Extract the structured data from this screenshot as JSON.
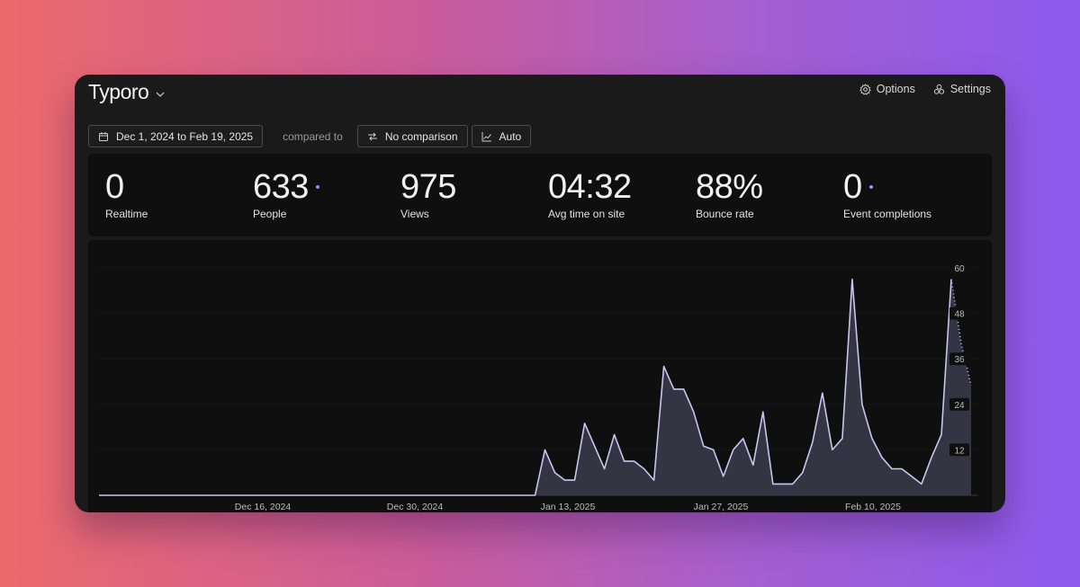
{
  "header": {
    "site_name": "Typoro",
    "options_label": "Options",
    "settings_label": "Settings"
  },
  "filters": {
    "date_range": "Dec 1, 2024 to Feb 19, 2025",
    "compared_to": "compared to",
    "comparison": "No comparison",
    "interval": "Auto"
  },
  "stats": [
    {
      "value": "0",
      "label": "Realtime",
      "dot": false
    },
    {
      "value": "633",
      "label": "People",
      "dot": true
    },
    {
      "value": "975",
      "label": "Views",
      "dot": false
    },
    {
      "value": "04:32",
      "label": "Avg time on site",
      "dot": false
    },
    {
      "value": "88%",
      "label": "Bounce rate",
      "dot": false
    },
    {
      "value": "0",
      "label": "Event completions",
      "dot": true
    }
  ],
  "colors": {
    "accent": "#8f8fff",
    "line": "#c9c6f2",
    "area": "#3a3848"
  },
  "chart_data": {
    "type": "area",
    "x_tick_labels": [
      "Dec 16, 2024",
      "Dec 30, 2024",
      "Jan 13, 2025",
      "Jan 27, 2025",
      "Feb 10, 2025"
    ],
    "y_ticks": [
      12,
      24,
      36,
      48,
      60
    ],
    "ylim": [
      0,
      60
    ],
    "grid": true,
    "start_date": "Dec 1, 2024",
    "values": [
      0,
      0,
      0,
      0,
      0,
      0,
      0,
      0,
      0,
      0,
      0,
      0,
      0,
      0,
      0,
      0,
      0,
      0,
      0,
      0,
      0,
      0,
      0,
      0,
      0,
      0,
      0,
      0,
      0,
      0,
      0,
      0,
      0,
      0,
      0,
      0,
      0,
      0,
      0,
      0,
      0,
      0,
      0,
      0,
      0,
      12,
      6,
      4,
      4,
      19,
      13,
      7,
      16,
      9,
      9,
      7,
      4,
      34,
      28,
      28,
      22,
      13,
      12,
      5,
      12,
      15,
      8,
      22,
      3,
      3,
      3,
      6,
      14,
      27,
      12,
      15,
      57,
      24,
      15,
      10,
      7,
      7,
      5,
      3,
      10,
      16,
      57,
      40,
      29
    ],
    "dotted_tail": [
      57,
      40,
      29
    ]
  }
}
